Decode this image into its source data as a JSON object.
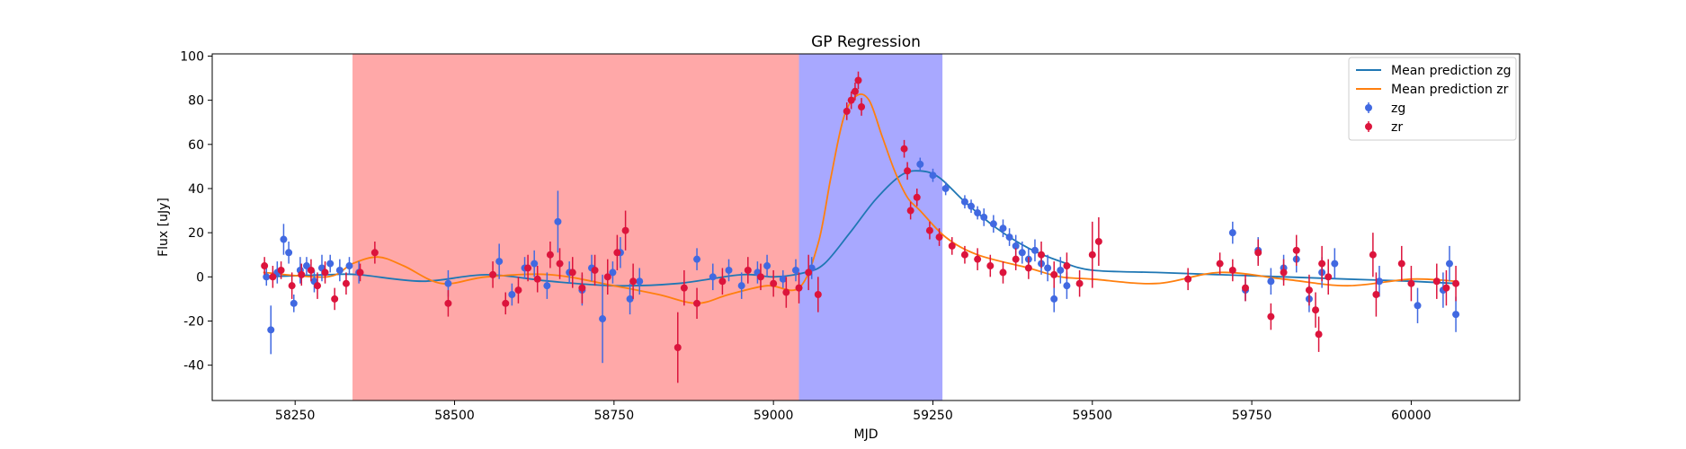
{
  "chart_data": {
    "type": "scatter",
    "title": "GP Regression",
    "xlabel": "MJD",
    "ylabel": "Flux [uJy]",
    "xlim": [
      58120,
      60170
    ],
    "ylim": [
      -56,
      101
    ],
    "xticks": [
      58250,
      58500,
      58750,
      59000,
      59250,
      59500,
      59750,
      60000
    ],
    "yticks": [
      -40,
      -20,
      0,
      20,
      40,
      60,
      80,
      100
    ],
    "shaded_regions": [
      {
        "name": "red",
        "x0": 58340,
        "x1": 59040,
        "color": "#ff0000",
        "opacity": 0.34
      },
      {
        "name": "blue",
        "x0": 59040,
        "x1": 59265,
        "color": "#0000ff",
        "opacity": 0.34
      }
    ],
    "legend": {
      "position": "top-right",
      "entries": [
        {
          "label": "Mean prediction zg",
          "kind": "line",
          "color": "#1f77b4"
        },
        {
          "label": "Mean prediction zr",
          "kind": "line",
          "color": "#ff7f0e"
        },
        {
          "label": "zg",
          "kind": "marker",
          "color": "#4169e1"
        },
        {
          "label": "zr",
          "kind": "marker",
          "color": "#dc143c"
        }
      ]
    },
    "series": [
      {
        "name": "Mean prediction zg",
        "kind": "line",
        "color": "#1f77b4",
        "x": [
          58200,
          58300,
          58350,
          58450,
          58550,
          58650,
          58750,
          58850,
          58950,
          59000,
          59050,
          59080,
          59120,
          59160,
          59200,
          59230,
          59260,
          59300,
          59350,
          59400,
          59450,
          59500,
          59600,
          59700,
          59800,
          59900,
          60000,
          60070
        ],
        "y": [
          0,
          1,
          1,
          -2,
          1,
          -2,
          -4,
          -3,
          1,
          0,
          2,
          6,
          20,
          35,
          46,
          48,
          45,
          34,
          22,
          13,
          7,
          3,
          2,
          1,
          0,
          -1,
          -2,
          -3
        ]
      },
      {
        "name": "Mean prediction zr",
        "kind": "line",
        "color": "#ff7f0e",
        "x": [
          58200,
          58300,
          58340,
          58380,
          58420,
          58480,
          58550,
          58650,
          58750,
          58820,
          58880,
          58930,
          58990,
          59040,
          59070,
          59090,
          59110,
          59130,
          59150,
          59170,
          59190,
          59210,
          59230,
          59270,
          59320,
          59400,
          59450,
          59500,
          59600,
          59700,
          59800,
          59900,
          60000,
          60070
        ],
        "y": [
          2,
          0,
          6,
          9,
          5,
          -3,
          0,
          1,
          -4,
          -8,
          -12,
          -8,
          -4,
          -5,
          15,
          45,
          72,
          82,
          80,
          64,
          48,
          36,
          30,
          18,
          10,
          4,
          0,
          -1,
          -3,
          2,
          -1,
          -4,
          -1,
          -2
        ]
      },
      {
        "name": "zg",
        "kind": "errorbar",
        "color": "#4169e1",
        "x": [
          58205,
          58212,
          58222,
          58232,
          58240,
          58248,
          58258,
          58268,
          58280,
          58292,
          58305,
          58320,
          58335,
          58350,
          58490,
          58570,
          58590,
          58610,
          58625,
          58645,
          58662,
          58680,
          58700,
          58715,
          58732,
          58748,
          58760,
          58775,
          58790,
          58880,
          58905,
          58930,
          58950,
          58975,
          58990,
          59015,
          59035,
          59060,
          59230,
          59250,
          59270,
          59300,
          59310,
          59320,
          59330,
          59345,
          59360,
          59370,
          59380,
          59390,
          59400,
          59410,
          59420,
          59430,
          59440,
          59450,
          59460,
          59720,
          59740,
          59760,
          59780,
          59800,
          59820,
          59840,
          59860,
          59880,
          59950,
          60010,
          60050,
          60060,
          60070
        ],
        "y": [
          0,
          -24,
          2,
          17,
          11,
          -12,
          3,
          5,
          -2,
          4,
          6,
          3,
          5,
          2,
          -3,
          7,
          -8,
          4,
          6,
          -4,
          25,
          2,
          -6,
          4,
          -19,
          2,
          11,
          -10,
          -2,
          8,
          0,
          3,
          -4,
          2,
          5,
          -1,
          3,
          4,
          51,
          46,
          40,
          34,
          32,
          29,
          27,
          24,
          22,
          18,
          14,
          11,
          8,
          12,
          6,
          4,
          -10,
          3,
          -4,
          20,
          -6,
          12,
          -2,
          4,
          8,
          -10,
          2,
          6,
          -2,
          -13,
          -6,
          6,
          -17
        ],
        "yerr": [
          4,
          11,
          5,
          7,
          5,
          4,
          6,
          4,
          5,
          6,
          4,
          5,
          4,
          5,
          6,
          8,
          5,
          5,
          6,
          6,
          14,
          5,
          7,
          6,
          20,
          5,
          7,
          7,
          6,
          5,
          6,
          5,
          6,
          5,
          5,
          4,
          5,
          5,
          3,
          3,
          3,
          3,
          3,
          3,
          4,
          4,
          4,
          4,
          5,
          5,
          5,
          5,
          5,
          6,
          6,
          6,
          6,
          5,
          5,
          6,
          6,
          6,
          6,
          6,
          7,
          7,
          7,
          8,
          8,
          8,
          8
        ]
      },
      {
        "name": "zr",
        "kind": "errorbar",
        "color": "#dc143c",
        "x": [
          58202,
          58215,
          58228,
          58245,
          58260,
          58275,
          58285,
          58297,
          58312,
          58330,
          58352,
          58375,
          58490,
          58560,
          58580,
          58600,
          58615,
          58630,
          58650,
          58665,
          58685,
          58700,
          58720,
          58740,
          58755,
          58768,
          58780,
          58850,
          58860,
          58880,
          58920,
          58960,
          58980,
          59000,
          59020,
          59040,
          59055,
          59070,
          59115,
          59122,
          59128,
          59133,
          59138,
          59205,
          59210,
          59215,
          59225,
          59245,
          59260,
          59280,
          59300,
          59320,
          59340,
          59360,
          59380,
          59400,
          59420,
          59440,
          59460,
          59480,
          59500,
          59510,
          59650,
          59700,
          59720,
          59740,
          59760,
          59780,
          59800,
          59820,
          59840,
          59850,
          59855,
          59860,
          59870,
          59940,
          59945,
          59985,
          60000,
          60040,
          60055,
          60070
        ],
        "y": [
          5,
          0,
          3,
          -4,
          1,
          3,
          -4,
          2,
          -10,
          -3,
          2,
          11,
          -12,
          1,
          -12,
          -6,
          4,
          -1,
          10,
          6,
          2,
          -5,
          3,
          0,
          11,
          21,
          -2,
          -32,
          -5,
          -12,
          -2,
          3,
          0,
          -3,
          -7,
          -5,
          2,
          -8,
          75,
          80,
          84,
          89,
          77,
          58,
          48,
          30,
          36,
          21,
          18,
          14,
          10,
          8,
          5,
          2,
          8,
          4,
          10,
          1,
          5,
          -3,
          10,
          16,
          -1,
          6,
          3,
          -5,
          11,
          -18,
          2,
          12,
          -6,
          -15,
          -26,
          6,
          0,
          10,
          -8,
          6,
          -3,
          -2,
          -5,
          -3
        ],
        "yerr": [
          4,
          5,
          4,
          6,
          5,
          5,
          6,
          5,
          5,
          5,
          4,
          5,
          6,
          6,
          5,
          6,
          6,
          6,
          6,
          7,
          7,
          7,
          7,
          8,
          8,
          9,
          8,
          16,
          8,
          7,
          6,
          6,
          6,
          6,
          7,
          7,
          8,
          8,
          4,
          4,
          4,
          4,
          4,
          4,
          4,
          4,
          4,
          4,
          4,
          4,
          4,
          5,
          5,
          5,
          5,
          5,
          6,
          6,
          6,
          6,
          15,
          11,
          5,
          5,
          5,
          6,
          6,
          6,
          6,
          7,
          7,
          8,
          8,
          8,
          8,
          10,
          10,
          8,
          8,
          8,
          8,
          8
        ]
      }
    ]
  }
}
